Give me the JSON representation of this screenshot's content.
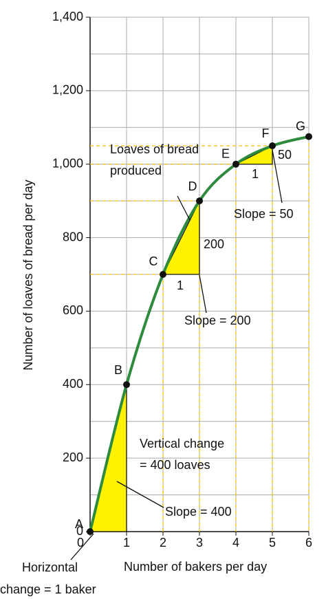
{
  "chart_data": {
    "type": "line",
    "x_label": "Number of bakers per day",
    "y_label": "Number of loaves of bread per day",
    "x": [
      0,
      1,
      2,
      3,
      4,
      5,
      6
    ],
    "series": [
      {
        "values": [
          0,
          400,
          700,
          900,
          1000,
          1050,
          1075
        ],
        "color": "#2e8b3e",
        "point_labels": [
          "A",
          "B",
          "C",
          "D",
          "E",
          "F",
          "G"
        ]
      }
    ],
    "xlim": [
      0,
      6
    ],
    "ylim": [
      0,
      1400
    ],
    "xticks": [
      0,
      1,
      2,
      3,
      4,
      5,
      6
    ],
    "yticks": [
      0,
      200,
      400,
      600,
      800,
      {
        "value": 1000,
        "label": "1,000"
      },
      {
        "value": 1200,
        "label": "1,200"
      },
      {
        "value": 1400,
        "label": "1,400"
      }
    ],
    "ygrid": [
      100,
      200,
      300,
      400,
      500,
      600,
      700,
      800,
      900,
      1000,
      1100,
      1200,
      1300,
      1400
    ],
    "grid": true,
    "triangle_color": "#fff200",
    "annotations": [
      "Loaves of bread",
      "produced",
      "Slope = 50",
      "50",
      "1",
      "200",
      "1",
      "Slope = 200",
      "Vertical change",
      "= 400 loaves",
      "Slope = 400",
      "Horizontal",
      "change = 1 baker"
    ]
  }
}
